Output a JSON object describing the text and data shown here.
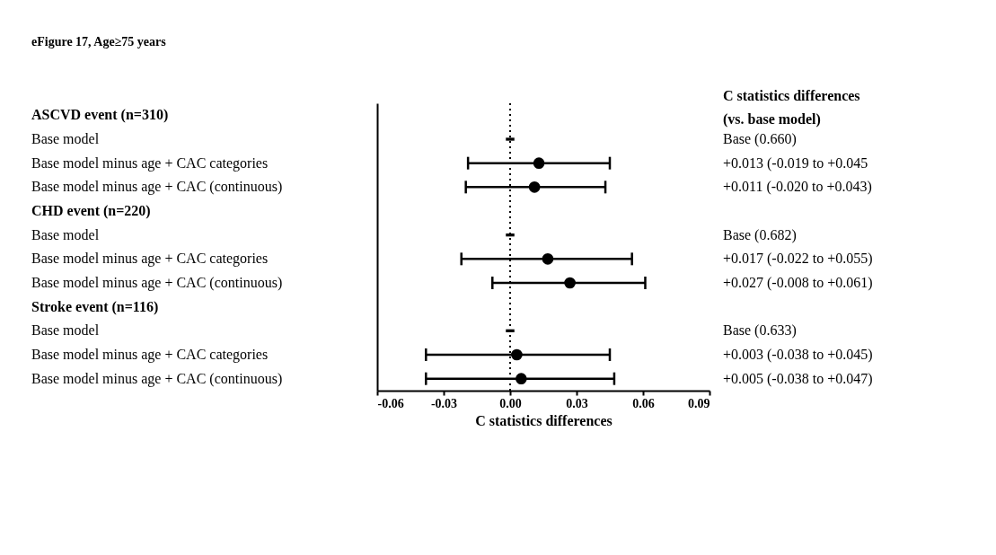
{
  "chart_data": {
    "type": "scatter",
    "orientation": "horizontal",
    "title": "eFigure 17, Age≥75 years",
    "xlabel": "C statistics differences",
    "categories": [
      "ASCVD event (n=310)",
      "Base model",
      "Base model minus age + CAC categories",
      "Base model minus age + CAC (continuous)",
      "CHD event (n=220)",
      "Base model",
      "Base model minus age + CAC categories",
      "Base model minus age + CAC (continuous)",
      "Stroke event (n=116)",
      "Base model",
      "Base model minus age + CAC categories",
      "Base model minus age + CAC (continuous)"
    ],
    "series": [
      {
        "color": "#000000",
        "marker": "circle",
        "values": [
          null,
          null,
          0.013,
          0.011,
          null,
          null,
          0.017,
          0.027,
          null,
          null,
          0.003,
          0.005
        ],
        "errors": [
          null,
          null,
          [
            -0.019,
            0.045
          ],
          [
            -0.02,
            0.043
          ],
          null,
          null,
          [
            -0.022,
            0.055
          ],
          [
            -0.008,
            0.061
          ],
          null,
          null,
          [
            -0.038,
            0.045
          ],
          [
            -0.038,
            0.047
          ]
        ]
      },
      {
        "color": "#000000",
        "marker": "square",
        "values": [
          null,
          0,
          null,
          null,
          null,
          0,
          null,
          null,
          null,
          0,
          null,
          null
        ]
      }
    ],
    "xlim": [
      -0.06,
      0.09
    ],
    "xticks": [
      -0.06,
      -0.03,
      {
        "value": 0,
        "label": "0.00"
      },
      0.03,
      0.06,
      0.09
    ],
    "ref_lines": [
      {
        "axis": "x",
        "value": 0,
        "line_style": "dotted"
      }
    ],
    "annotations": [
      "C statistics differences\n(vs. base model)",
      "Base (0.660)",
      "+0.013 (-0.019 to +0.045",
      "+0.011 (-0.020 to +0.043)",
      "Base (0.682)",
      "+0.017 (-0.022 to +0.055)",
      "+0.027 (-0.008 to +0.061)",
      "Base (0.633)",
      "+0.003 (-0.038 to +0.045)",
      "+0.005 (-0.038 to +0.047)"
    ],
    "grid": false
  }
}
